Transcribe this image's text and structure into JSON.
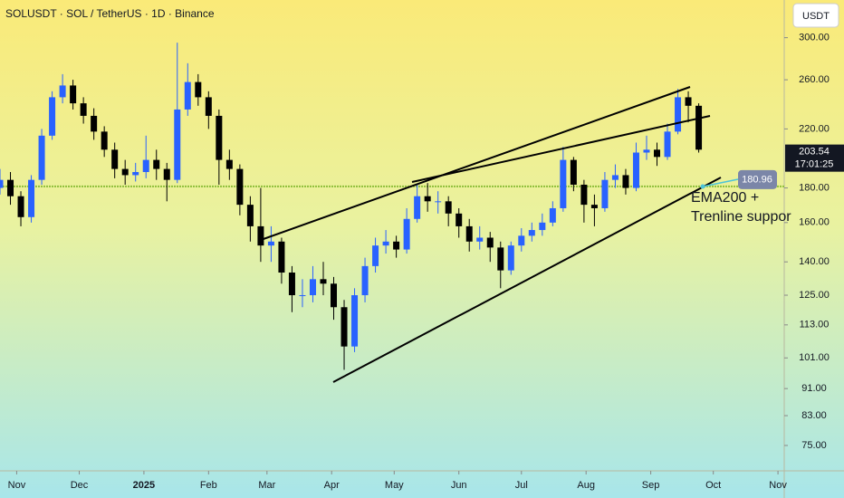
{
  "chart_data": {
    "type": "candlestick",
    "title": "SOLUSDT · SOL / TetherUS · 1D · Binance",
    "currency": "USDT",
    "log_scale": true,
    "grid": false,
    "up_color": "#2962ff",
    "down_color": "#000000",
    "x": [
      0,
      5,
      10,
      15,
      20,
      25,
      30,
      35,
      40,
      45,
      50,
      55,
      60,
      65,
      70,
      75,
      80,
      85,
      90,
      95,
      100,
      105,
      110,
      115,
      120,
      125,
      130,
      135,
      140,
      145,
      150,
      155,
      160,
      165,
      170,
      175,
      180,
      185,
      190,
      195,
      200,
      205,
      210,
      215,
      220,
      225,
      230,
      235,
      240,
      245,
      250,
      255,
      260,
      265,
      270,
      275,
      280,
      285,
      290,
      295,
      300,
      305,
      310,
      315,
      320,
      325,
      330,
      335
    ],
    "open": [
      180,
      185,
      175,
      163,
      185,
      215,
      245,
      255,
      240,
      230,
      218,
      205,
      192,
      188,
      190,
      198,
      192,
      185,
      235,
      258,
      245,
      230,
      198,
      192,
      170,
      158,
      148,
      150,
      135,
      125,
      125,
      132,
      130,
      120,
      105,
      125,
      138,
      148,
      150,
      146,
      162,
      175,
      172,
      172,
      165,
      158,
      150,
      152,
      147,
      136,
      148,
      153,
      156,
      160,
      168,
      198,
      182,
      170,
      168,
      185,
      188,
      180,
      203,
      205,
      200,
      218,
      245,
      238
    ],
    "high": [
      192,
      190,
      178,
      188,
      220,
      250,
      265,
      260,
      245,
      236,
      222,
      210,
      198,
      196,
      215,
      205,
      196,
      295,
      275,
      265,
      250,
      235,
      205,
      195,
      175,
      180,
      158,
      152,
      138,
      132,
      138,
      140,
      133,
      123,
      128,
      142,
      152,
      156,
      153,
      168,
      182,
      183,
      178,
      175,
      168,
      162,
      158,
      155,
      150,
      150,
      157,
      160,
      165,
      172,
      207,
      200,
      185,
      176,
      190,
      195,
      192,
      210,
      215,
      210,
      224,
      252,
      250,
      240
    ],
    "low": [
      176,
      170,
      158,
      160,
      182,
      212,
      240,
      235,
      224,
      212,
      200,
      186,
      182,
      184,
      186,
      185,
      172,
      183,
      230,
      238,
      220,
      182,
      185,
      164,
      150,
      140,
      140,
      130,
      118,
      120,
      122,
      125,
      115,
      97,
      103,
      122,
      135,
      144,
      142,
      144,
      160,
      166,
      165,
      158,
      152,
      145,
      146,
      140,
      128,
      134,
      145,
      150,
      153,
      158,
      166,
      178,
      160,
      158,
      166,
      180,
      176,
      178,
      198,
      194,
      198,
      216,
      225,
      203
    ],
    "close": [
      185,
      175,
      163,
      185,
      215,
      245,
      255,
      240,
      230,
      218,
      205,
      192,
      188,
      190,
      198,
      192,
      185,
      235,
      258,
      245,
      230,
      198,
      192,
      170,
      158,
      148,
      150,
      135,
      125,
      125,
      132,
      130,
      120,
      105,
      125,
      138,
      148,
      150,
      146,
      162,
      175,
      172,
      172,
      165,
      158,
      150,
      152,
      147,
      136,
      148,
      153,
      156,
      160,
      168,
      198,
      182,
      170,
      168,
      185,
      188,
      180,
      203,
      205,
      200,
      218,
      245,
      238,
      205
    ],
    "xlim": [
      0,
      376
    ],
    "xticks": [
      {
        "value": 8,
        "label": "Nov"
      },
      {
        "value": 38,
        "label": "Dec"
      },
      {
        "value": 69,
        "label": "2025"
      },
      {
        "value": 100,
        "label": "Feb"
      },
      {
        "value": 128,
        "label": "Mar"
      },
      {
        "value": 159,
        "label": "Apr"
      },
      {
        "value": 189,
        "label": "May"
      },
      {
        "value": 220,
        "label": "Jun"
      },
      {
        "value": 250,
        "label": "Jul"
      },
      {
        "value": 281,
        "label": "Aug"
      },
      {
        "value": 312,
        "label": "Sep"
      },
      {
        "value": 342,
        "label": "Oct"
      },
      {
        "value": 373,
        "label": "Nov"
      }
    ],
    "ylim": [
      68.8,
      341
    ],
    "yticks": [
      {
        "value": 300,
        "label": "300.00"
      },
      {
        "value": 260,
        "label": "260.00"
      },
      {
        "value": 220,
        "label": "220.00"
      },
      {
        "value": 180,
        "label": "180.00"
      },
      {
        "value": 160,
        "label": "160.00"
      },
      {
        "value": 140,
        "label": "140.00"
      },
      {
        "value": 125,
        "label": "125.00"
      },
      {
        "value": 113,
        "label": "113.00"
      },
      {
        "value": 101,
        "label": "101.00"
      },
      {
        "value": 91,
        "label": "91.00"
      },
      {
        "value": 83,
        "label": "83.00"
      },
      {
        "value": 75,
        "label": "75.00"
      }
    ],
    "last_price": 203.54,
    "countdown": "17:01:25",
    "ema_value": 180.96,
    "annotation": [
      "EMA200 +",
      "Trenline suppor"
    ]
  }
}
